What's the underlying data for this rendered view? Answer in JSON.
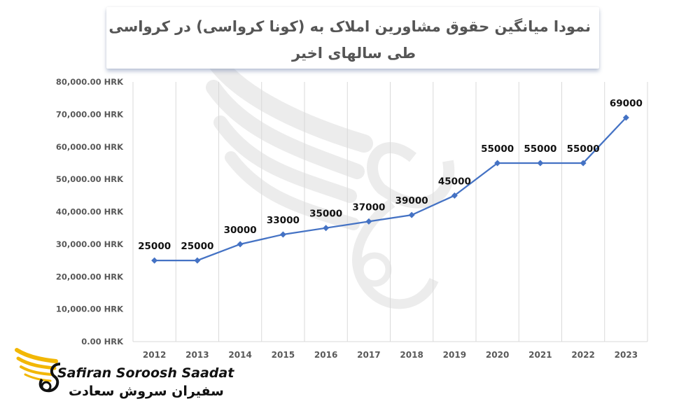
{
  "title_lines": [
    "نمودا میانگین حقوق مشاورین املاک به (کونا کرواسی) در کرواسی",
    "طی سالهای اخیر"
  ],
  "brand": {
    "latin": "Safiran Soroosh Saadat",
    "persian": "سفیران سروش سعادت",
    "gold": "#F2B705"
  },
  "chart_data": {
    "type": "line",
    "title": "نمودا میانگین حقوق مشاورین املاک به (کونا کرواسی) در کرواسی طی سالهای اخیر",
    "categories": [
      "2012",
      "2013",
      "2014",
      "2015",
      "2016",
      "2017",
      "2018",
      "2019",
      "2020",
      "2021",
      "2022",
      "2023"
    ],
    "values": [
      25000,
      25000,
      30000,
      33000,
      35000,
      37000,
      39000,
      45000,
      55000,
      55000,
      55000,
      69000
    ],
    "y_ticks": [
      "0.00 HRK",
      "10,000.00 HRK",
      "20,000.00 HRK",
      "30,000.00 HRK",
      "40,000.00 HRK",
      "50,000.00 HRK",
      "60,000.00 HRK",
      "70,000.00 HRK",
      "80,000.00 HRK"
    ],
    "data_labels": [
      "25000",
      "25000",
      "30000",
      "33000",
      "35000",
      "37000",
      "39000",
      "45000",
      "55000",
      "55000",
      "55000",
      "69000"
    ],
    "ylim": [
      0,
      80000
    ],
    "grid": "vertical",
    "line_color": "#4472C4"
  }
}
